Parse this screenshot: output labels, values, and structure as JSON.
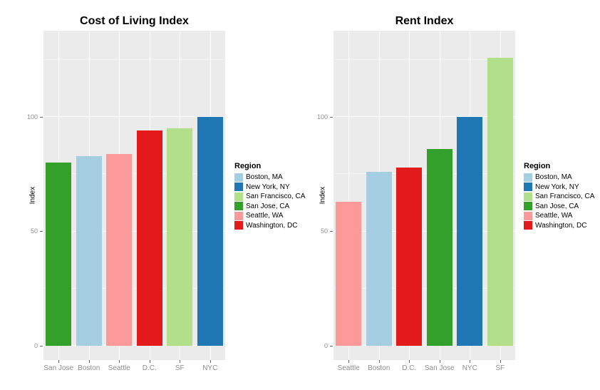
{
  "figure": {
    "background": "#FFFFFF"
  },
  "colors": {
    "panel_bg": "#EBEBEB",
    "grid_major": "#FFFFFF",
    "grid_minor": "rgba(255,255,255,0.55)",
    "axis_text": "#8C8C8C",
    "tick_mark": "#666666",
    "title_text": "#000000"
  },
  "palette": {
    "Boston, MA": "#A6CEE3",
    "New York, NY": "#1F78B4",
    "San Francisco, CA": "#B2DF8A",
    "San Jose, CA": "#33A02C",
    "Seattle, WA": "#FB9A99",
    "Washington, DC": "#E31A1C"
  },
  "legend": {
    "title": "Region",
    "items": [
      {
        "label": "Boston, MA",
        "color": "#A6CEE3"
      },
      {
        "label": "New York, NY",
        "color": "#1F78B4"
      },
      {
        "label": "San Francisco, CA",
        "color": "#B2DF8A"
      },
      {
        "label": "San Jose, CA",
        "color": "#33A02C"
      },
      {
        "label": "Seattle, WA",
        "color": "#FB9A99"
      },
      {
        "label": "Washington, DC",
        "color": "#E31A1C"
      }
    ]
  },
  "chart_data": [
    {
      "type": "bar",
      "title": "Cost of Living Index",
      "ylabel": "Index",
      "xlabel": "",
      "categories": [
        "San Jose",
        "Boston",
        "Seattle",
        "D.C.",
        "SF",
        "NYC"
      ],
      "regions": [
        "San Jose, CA",
        "Boston, MA",
        "Seattle, WA",
        "Washington, DC",
        "San Francisco, CA",
        "New York, NY"
      ],
      "values": [
        80,
        83,
        84,
        94,
        95,
        100
      ],
      "yticks": [
        0,
        50,
        100
      ],
      "yticks_minor": [
        25,
        75,
        125
      ],
      "ylim": [
        -6.3,
        137.8
      ],
      "grid": true,
      "legend_position": "right"
    },
    {
      "type": "bar",
      "title": "Rent Index",
      "ylabel": "Index",
      "xlabel": "",
      "categories": [
        "Seattle",
        "Boston",
        "D.C.",
        "San Jose",
        "NYC",
        "SF"
      ],
      "regions": [
        "Seattle, WA",
        "Boston, MA",
        "Washington, DC",
        "San Jose, CA",
        "New York, NY",
        "San Francisco, CA"
      ],
      "values": [
        63,
        76,
        78,
        86,
        100,
        126
      ],
      "yticks": [
        0,
        50,
        100
      ],
      "yticks_minor": [
        25,
        75,
        125
      ],
      "ylim": [
        -6.3,
        137.8
      ],
      "grid": true,
      "legend_position": "right"
    }
  ]
}
